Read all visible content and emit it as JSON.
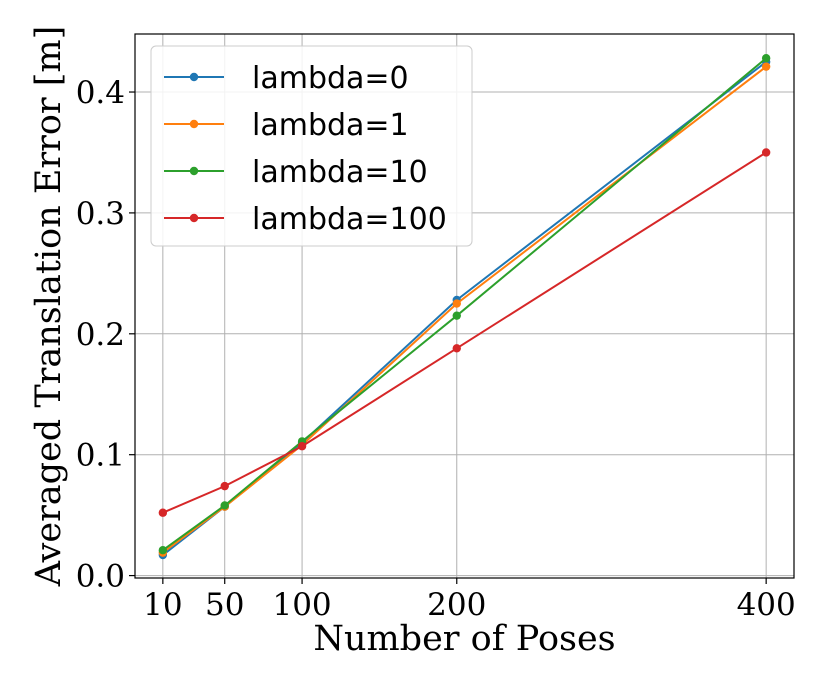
{
  "chart_data": {
    "type": "line",
    "title": "",
    "xlabel": "Number of Poses",
    "ylabel": "Averaged Translation Error [m]",
    "x": [
      10,
      50,
      100,
      200,
      400
    ],
    "xticks": [
      10,
      50,
      100,
      200,
      400
    ],
    "xtick_labels": [
      "10",
      "50",
      "100",
      "200",
      "400"
    ],
    "yticks": [
      0.0,
      0.1,
      0.2,
      0.3,
      0.4
    ],
    "ytick_labels": [
      "0.0",
      "0.1",
      "0.2",
      "0.3",
      "0.4"
    ],
    "xlim": [
      -8,
      418
    ],
    "ylim": [
      -0.002,
      0.448
    ],
    "grid": true,
    "legend_position": "top-left",
    "series": [
      {
        "name": "lambda=0",
        "color": "#1f77b4",
        "values": [
          0.017,
          0.057,
          0.11,
          0.228,
          0.425
        ]
      },
      {
        "name": "lambda=1",
        "color": "#ff7f0e",
        "values": [
          0.019,
          0.057,
          0.108,
          0.225,
          0.421
        ]
      },
      {
        "name": "lambda=10",
        "color": "#2ca02c",
        "values": [
          0.021,
          0.058,
          0.111,
          0.215,
          0.428
        ]
      },
      {
        "name": "lambda=100",
        "color": "#d62728",
        "values": [
          0.052,
          0.074,
          0.107,
          0.188,
          0.35
        ]
      }
    ]
  }
}
